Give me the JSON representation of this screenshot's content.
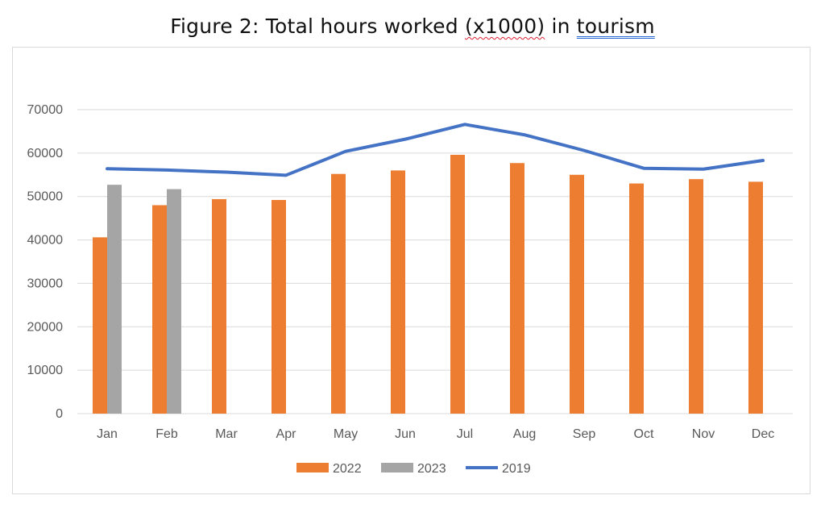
{
  "title": {
    "prefix": "Figure 2:  Total hours worked ",
    "unit": "(x1000)",
    "mid": " in ",
    "topic": "tourism"
  },
  "chart_data": {
    "type": "bar",
    "categories": [
      "Jan",
      "Feb",
      "Mar",
      "Apr",
      "May",
      "Jun",
      "Jul",
      "Aug",
      "Sep",
      "Oct",
      "Nov",
      "Dec"
    ],
    "series": [
      {
        "name": "2022",
        "kind": "bar",
        "color": "#ED7D31",
        "values": [
          40600,
          48000,
          49400,
          49200,
          55200,
          56000,
          59600,
          57700,
          55000,
          53000,
          54000,
          53400
        ]
      },
      {
        "name": "2023",
        "kind": "bar",
        "color": "#A5A5A5",
        "values": [
          52700,
          51700,
          null,
          null,
          null,
          null,
          null,
          null,
          null,
          null,
          null,
          null
        ]
      },
      {
        "name": "2019",
        "kind": "line",
        "color": "#4472C4",
        "values": [
          56400,
          56100,
          55600,
          54900,
          60400,
          63200,
          66600,
          64200,
          60600,
          56500,
          56300,
          58300
        ]
      }
    ],
    "yticks": [
      0,
      10000,
      20000,
      30000,
      40000,
      50000,
      60000,
      70000
    ],
    "ylim": [
      0,
      70000
    ],
    "grid": true,
    "legend": "bottom"
  }
}
